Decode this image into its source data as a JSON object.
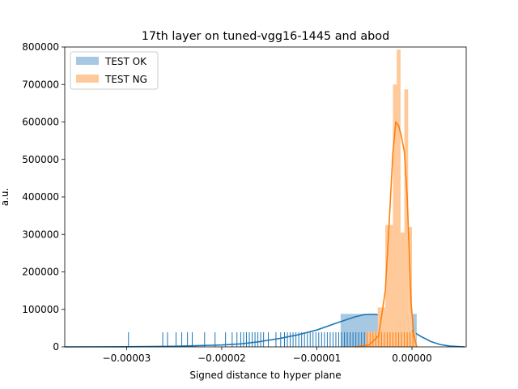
{
  "chart_data": {
    "type": "histogram",
    "title": "17th layer on tuned-vgg16-1445 and abod",
    "xlabel": "Signed distance to hyper plane",
    "ylabel": "a.u.",
    "xlim": [
      -3.65e-05,
      5.7e-06
    ],
    "ylim": [
      0,
      800000
    ],
    "x_ticks": [
      -3e-05,
      -2e-05,
      -1e-05,
      0.0
    ],
    "x_tick_labels": [
      "−0.00003",
      "−0.00002",
      "−0.00001",
      "0.00000"
    ],
    "y_ticks": [
      0,
      100000,
      200000,
      300000,
      400000,
      500000,
      600000,
      700000,
      800000
    ],
    "y_tick_labels": [
      "0",
      "100000",
      "200000",
      "300000",
      "400000",
      "500000",
      "600000",
      "700000",
      "800000"
    ],
    "legend_position": "upper-left",
    "series": [
      {
        "name": "TEST OK",
        "color": "#1f77b4",
        "hist_color": "#a6c8e2",
        "histogram": [
          {
            "x0": -3.15e-05,
            "x1": -2.35e-05,
            "height": 0
          },
          {
            "x0": -2.35e-05,
            "x1": -1.55e-05,
            "height": 0
          },
          {
            "x0": -1.55e-05,
            "x1": -7.5e-06,
            "height": 0
          },
          {
            "x0": -7.5e-06,
            "x1": 5e-07,
            "height": 88000
          }
        ],
        "kde": [
          [
            -3.65e-05,
            0
          ],
          [
            -3e-05,
            400
          ],
          [
            -2.5e-05,
            1500
          ],
          [
            -2e-05,
            5000
          ],
          [
            -1.8e-05,
            8000
          ],
          [
            -1.6e-05,
            14000
          ],
          [
            -1.4e-05,
            22000
          ],
          [
            -1.2e-05,
            32000
          ],
          [
            -1e-05,
            45000
          ],
          [
            -8e-06,
            63000
          ],
          [
            -6e-06,
            80000
          ],
          [
            -5e-06,
            86000
          ],
          [
            -4e-06,
            87000
          ],
          [
            -3e-06,
            84000
          ],
          [
            -2e-06,
            76000
          ],
          [
            -1e-06,
            60000
          ],
          [
            0.0,
            42000
          ],
          [
            1e-06,
            27000
          ],
          [
            2e-06,
            14000
          ],
          [
            3e-06,
            6000
          ],
          [
            4e-06,
            2000
          ],
          [
            5.5e-06,
            0
          ]
        ],
        "rug": [
          -2.98e-05,
          -2.62e-05,
          -2.57e-05,
          -2.48e-05,
          -2.42e-05,
          -2.36e-05,
          -2.31e-05,
          -2.18e-05,
          -2.07e-05,
          -1.96e-05,
          -1.89e-05,
          -1.84e-05,
          -1.8e-05,
          -1.77e-05,
          -1.74e-05,
          -1.71e-05,
          -1.68e-05,
          -1.65e-05,
          -1.62e-05,
          -1.59e-05,
          -1.56e-05,
          -1.51e-05,
          -1.43e-05,
          -1.38e-05,
          -1.34e-05,
          -1.31e-05,
          -1.28e-05,
          -1.25e-05,
          -1.22e-05,
          -1.19e-05,
          -1.16e-05,
          -1.13e-05,
          -1.1e-05,
          -1.07e-05,
          -1.04e-05,
          -1.01e-05,
          -9.8e-06,
          -9.5e-06,
          -9.2e-06,
          -8.9e-06,
          -8.6e-06,
          -8.3e-06,
          -8e-06,
          -7.7e-06,
          -7.4e-06,
          -7.1e-06,
          -6.8e-06,
          -6.5e-06,
          -6.2e-06,
          -5.9e-06,
          -5.6e-06,
          -5.3e-06,
          -5e-06,
          -4.7e-06,
          -4.4e-06,
          -4.1e-06,
          -3.8e-06,
          -3.5e-06,
          -3.2e-06,
          -2.9e-06,
          -2.6e-06,
          -2.3e-06,
          -2e-06,
          -1.7e-06,
          -1.4e-06,
          -1.1e-06,
          -8e-07,
          -5e-07,
          -2e-07
        ]
      },
      {
        "name": "TEST NG",
        "color": "#ff7f0e",
        "hist_color": "#ffc999",
        "histogram": [
          {
            "x0": -4.8e-06,
            "x1": -3.6e-06,
            "height": 40000
          },
          {
            "x0": -3.6e-06,
            "x1": -2.8e-06,
            "height": 105000
          },
          {
            "x0": -2.8e-06,
            "x1": -2e-06,
            "height": 325000
          },
          {
            "x0": -2e-06,
            "x1": -1.6e-06,
            "height": 700000
          },
          {
            "x0": -1.6e-06,
            "x1": -1.2e-06,
            "height": 793000
          },
          {
            "x0": -1.2e-06,
            "x1": -8e-07,
            "height": 305000
          },
          {
            "x0": -8e-07,
            "x1": -4e-07,
            "height": 687000
          },
          {
            "x0": -4e-07,
            "x1": 0.0,
            "height": 320000
          },
          {
            "x0": 0.0,
            "x1": 4e-07,
            "height": 40000
          }
        ],
        "kde": [
          [
            -6e-06,
            0
          ],
          [
            -4.5e-06,
            5000
          ],
          [
            -3.5e-06,
            30000
          ],
          [
            -2.8e-06,
            150000
          ],
          [
            -2.4e-06,
            330000
          ],
          [
            -2e-06,
            520000
          ],
          [
            -1.7e-06,
            600000
          ],
          [
            -1.4e-06,
            590000
          ],
          [
            -1.1e-06,
            560000
          ],
          [
            -8e-07,
            520000
          ],
          [
            -5e-07,
            400000
          ],
          [
            -3e-07,
            260000
          ],
          [
            -1e-07,
            120000
          ],
          [
            2e-07,
            30000
          ],
          [
            5e-07,
            0
          ]
        ],
        "rug": [
          -4.7e-06,
          -4.4e-06,
          -4.1e-06,
          -3.8e-06,
          -3.5e-06,
          -3.2e-06,
          -2.9e-06,
          -2.6e-06,
          -2.3e-06,
          -2e-06,
          -1.7e-06,
          -1.4e-06,
          -1.1e-06,
          -8e-07,
          -5e-07,
          -2e-07,
          1e-07
        ]
      }
    ]
  }
}
